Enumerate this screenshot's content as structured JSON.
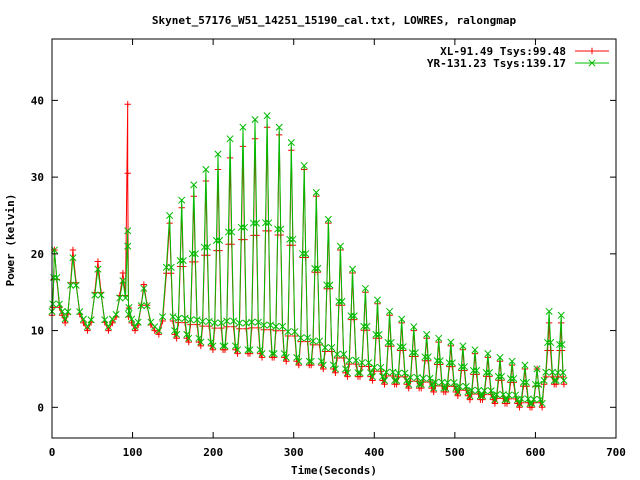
{
  "chart_data": {
    "type": "line",
    "title": "Skynet_57176_W51_14251_15190_cal.txt, LOWRES, ralongmap",
    "xlabel": "Time(Seconds)",
    "ylabel": "Power (kelvin)",
    "xlim": [
      0,
      700
    ],
    "ylim": [
      -4,
      48
    ],
    "xticks": [
      0,
      100,
      200,
      300,
      400,
      500,
      600,
      700
    ],
    "yticks": [
      0,
      10,
      20,
      30,
      40
    ],
    "grid": false,
    "legend_position": "top-right",
    "scan_period_s": 15.2,
    "series": [
      {
        "name": "XL-91.49 Tsys:99.48",
        "color": "#ff0000",
        "marker": "plus",
        "peak_x": [
          3,
          26,
          57,
          88,
          114,
          146,
          161,
          176,
          191,
          206,
          221,
          237,
          252,
          267,
          282,
          297,
          313,
          328,
          343,
          358,
          373,
          389,
          404,
          419,
          434,
          449,
          465,
          480,
          495,
          510,
          525,
          541,
          556,
          571,
          587,
          602,
          617,
          632
        ],
        "peak_y": [
          20.5,
          20.5,
          19,
          17.5,
          16,
          24,
          26,
          27.5,
          29.5,
          31,
          32.5,
          34,
          35,
          36.5,
          35.5,
          33.5,
          31,
          27.5,
          24,
          20.5,
          17.5,
          15,
          13.5,
          12,
          11,
          10,
          9,
          8.5,
          8,
          7.5,
          7,
          6.5,
          6,
          5.5,
          5,
          5,
          11,
          11
        ],
        "trough_y": [
          12,
          11,
          10,
          11,
          10,
          9.5,
          9,
          8.5,
          8,
          7.5,
          7.5,
          7,
          7,
          6.5,
          6.5,
          6,
          5.5,
          5.5,
          5,
          4.5,
          4,
          4,
          3.5,
          3,
          3,
          2.5,
          2.5,
          2,
          2,
          1.5,
          1,
          1,
          0.5,
          0.5,
          0,
          0,
          3,
          3
        ],
        "spike": {
          "x": 94,
          "y": [
            39.5,
            30.5
          ]
        }
      },
      {
        "name": "YR-131.23 Tsys:139.17",
        "color": "#00bb00",
        "marker": "x",
        "peak_x": [
          3,
          26,
          57,
          88,
          114,
          146,
          161,
          176,
          191,
          206,
          221,
          237,
          252,
          267,
          282,
          297,
          313,
          328,
          343,
          358,
          373,
          389,
          404,
          419,
          434,
          449,
          465,
          480,
          495,
          510,
          525,
          541,
          556,
          571,
          587,
          602,
          617,
          632
        ],
        "peak_y": [
          20.5,
          19.5,
          18,
          16.5,
          15.5,
          25,
          27,
          29,
          31,
          33,
          35,
          36.5,
          37.5,
          38,
          36.5,
          34.5,
          31.5,
          28,
          24.5,
          21,
          18,
          15.5,
          14,
          12.5,
          11.5,
          10.5,
          9.5,
          9,
          8.5,
          8,
          7.5,
          7,
          6.5,
          6,
          5.5,
          5,
          12.5,
          12
        ],
        "trough_y": [
          12.5,
          11.5,
          10.5,
          11.5,
          10.5,
          10,
          9.5,
          9,
          8.5,
          8,
          8,
          7.5,
          7.5,
          7,
          7,
          6.5,
          6,
          6,
          5.5,
          5,
          4.5,
          4.5,
          4,
          3.5,
          3.5,
          3,
          3,
          2.5,
          2.5,
          2,
          1.5,
          1.5,
          1,
          1,
          0.5,
          0.5,
          3.5,
          3.5
        ],
        "spike": {
          "x": 94,
          "y": [
            23,
            21
          ]
        }
      }
    ]
  }
}
